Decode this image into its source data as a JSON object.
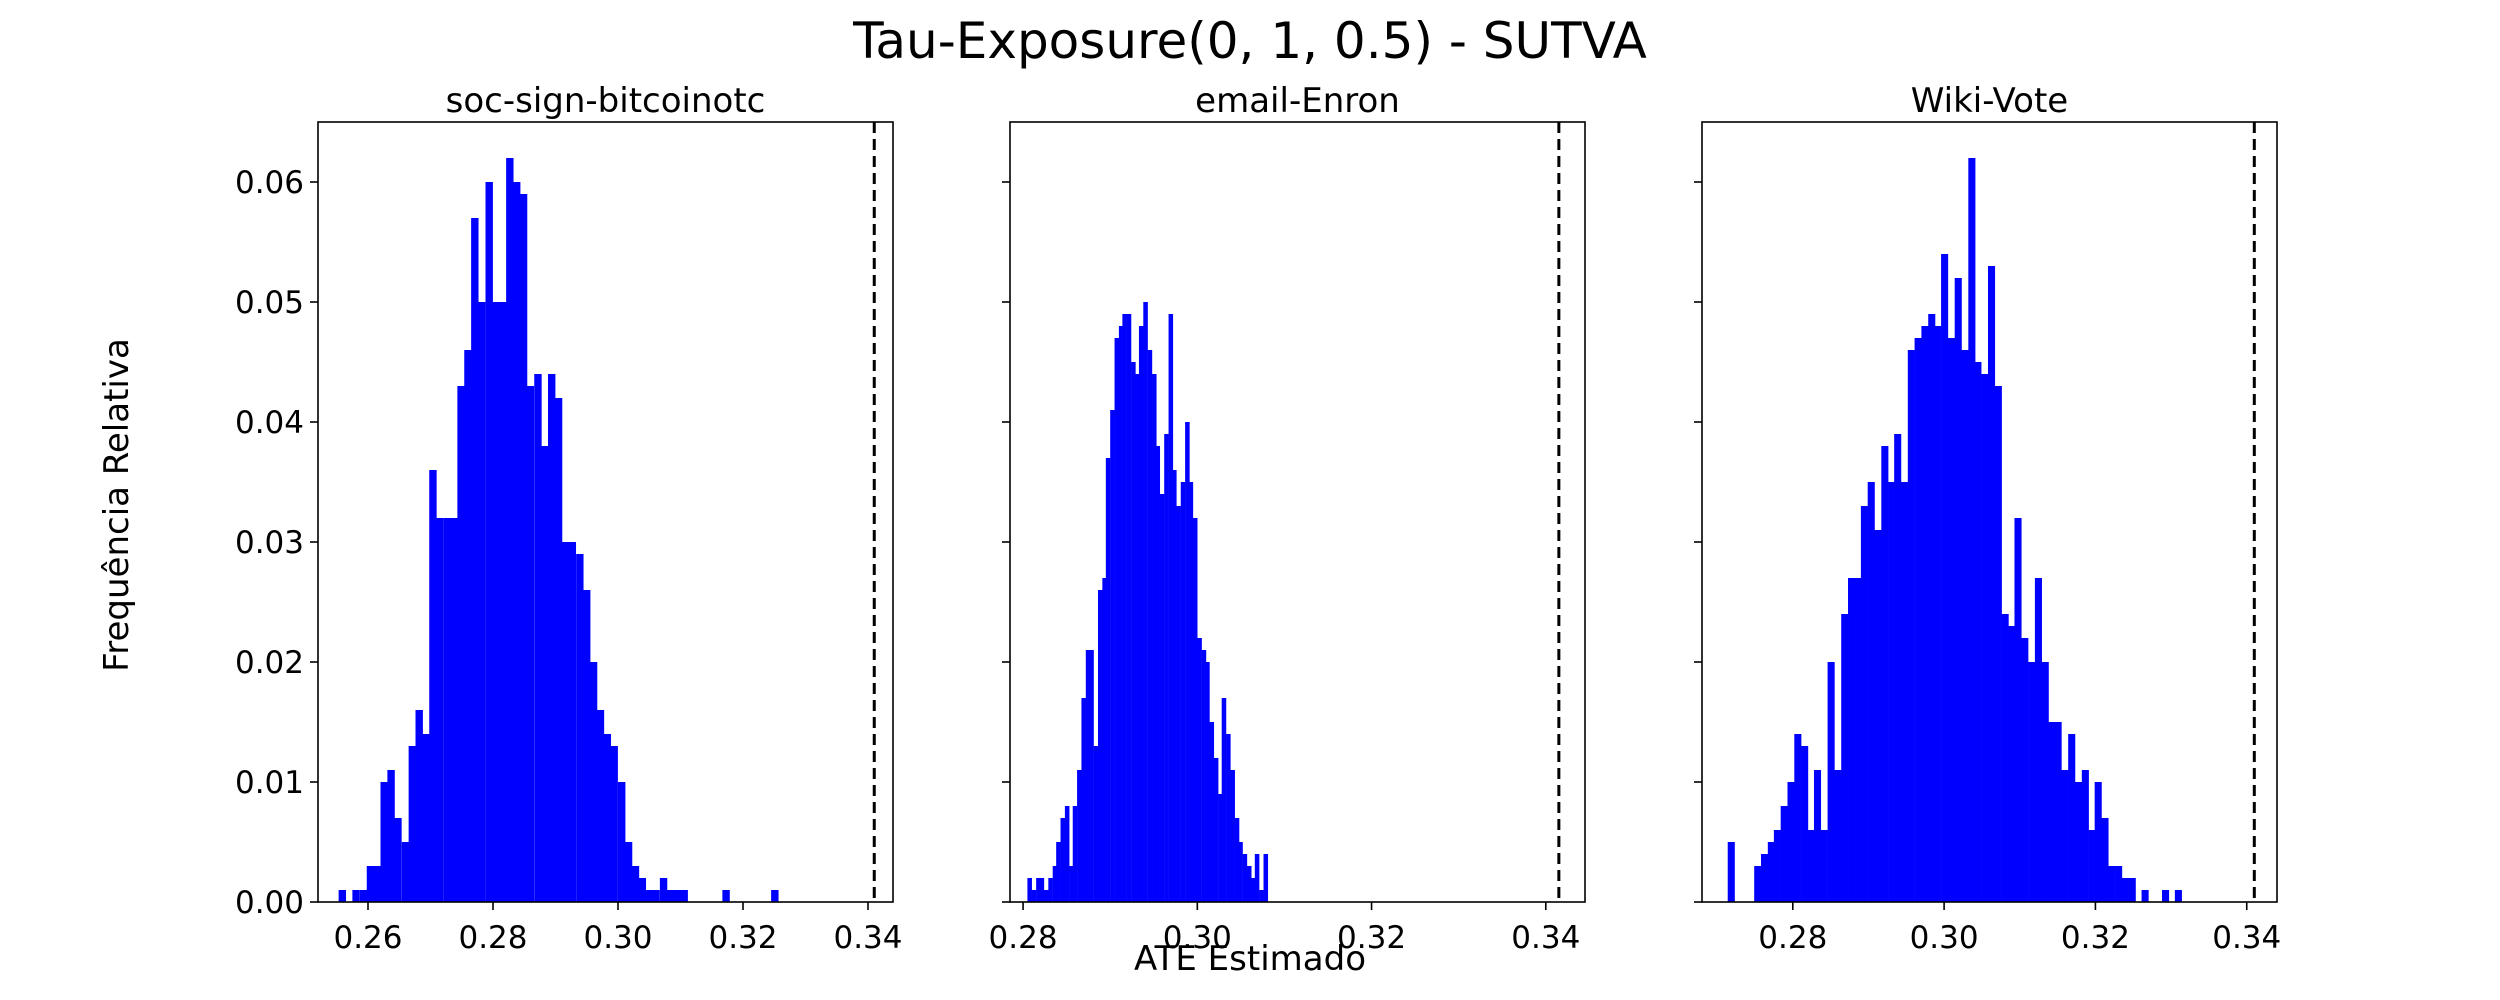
{
  "figure": {
    "title": "Tau-Exposure(0, 1, 0.5) - SUTVA",
    "xlabel": "ATE Estimado",
    "ylabel": "Frequência Relativa"
  },
  "chart_data": [
    {
      "type": "bar",
      "title": "soc-sign-bitcoinotc",
      "xlim": [
        0.252,
        0.344
      ],
      "ylim": [
        0,
        0.065
      ],
      "xticks": [
        0.26,
        0.28,
        0.3,
        0.32,
        0.34
      ],
      "xtick_labels": [
        "0.26",
        "0.28",
        "0.30",
        "0.32",
        "0.34"
      ],
      "yticks": [
        0.0,
        0.01,
        0.02,
        0.03,
        0.04,
        0.05,
        0.06
      ],
      "ytick_labels": [
        "0.00",
        "0.01",
        "0.02",
        "0.03",
        "0.04",
        "0.05",
        "0.06"
      ],
      "color": "#0000ff",
      "reference_line_x": 0.341,
      "bin_width": 0.00112,
      "bin_starts": [
        0.2553,
        0.2564,
        0.2575,
        0.2587,
        0.2598,
        0.2609,
        0.262,
        0.2631,
        0.2642,
        0.2654,
        0.2665,
        0.2676,
        0.2687,
        0.2698,
        0.2709,
        0.2721,
        0.2732,
        0.2743,
        0.2754,
        0.2765,
        0.2776,
        0.2788,
        0.2799,
        0.281,
        0.2821,
        0.2832,
        0.2843,
        0.2854,
        0.2866,
        0.2877,
        0.2888,
        0.2899,
        0.291,
        0.2921,
        0.2933,
        0.2944,
        0.2955,
        0.2966,
        0.2977,
        0.2988,
        0.3,
        0.3011,
        0.3022,
        0.3033,
        0.3044,
        0.3055,
        0.3067,
        0.3078,
        0.3089,
        0.31,
        0.3111,
        0.3122,
        0.3133,
        0.3145,
        0.3156,
        0.3167,
        0.3178,
        0.3189,
        0.32,
        0.3212,
        0.3223,
        0.3234,
        0.3245,
        0.3256,
        0.3267,
        0.3279,
        0.329,
        0.3301,
        0.3312,
        0.3323
      ],
      "values": [
        0.001,
        0,
        0.001,
        0.001,
        0.003,
        0.003,
        0.01,
        0.011,
        0.007,
        0.005,
        0.013,
        0.016,
        0.014,
        0.036,
        0.032,
        0.032,
        0.032,
        0.043,
        0.046,
        0.057,
        0.05,
        0.06,
        0.05,
        0.05,
        0.062,
        0.06,
        0.059,
        0.043,
        0.044,
        0.038,
        0.044,
        0.042,
        0.03,
        0.03,
        0.029,
        0.026,
        0.02,
        0.016,
        0.014,
        0.013,
        0.01,
        0.005,
        0.003,
        0.002,
        0.001,
        0.001,
        0.002,
        0.001,
        0.001,
        0.001,
        0,
        0,
        0,
        0,
        0,
        0.001,
        0,
        0,
        0,
        0,
        0,
        0,
        0.001,
        0,
        0,
        0,
        0,
        0,
        0,
        0
      ]
    },
    {
      "type": "bar",
      "title": "email-Enron",
      "xlim": [
        0.2785,
        0.3445
      ],
      "ylim": [
        0,
        0.065
      ],
      "xticks": [
        0.28,
        0.3,
        0.32,
        0.34
      ],
      "xtick_labels": [
        "0.28",
        "0.30",
        "0.32",
        "0.34"
      ],
      "yticks": [
        0.0,
        0.01,
        0.02,
        0.03,
        0.04,
        0.05,
        0.06
      ],
      "color": "#0000ff",
      "reference_line_x": 0.3415,
      "bin_width": 0.000475,
      "bin_starts": [
        0.2805,
        0.281,
        0.2815,
        0.2819,
        0.2824,
        0.2829,
        0.2834,
        0.2838,
        0.2843,
        0.2848,
        0.2853,
        0.2857,
        0.2862,
        0.2867,
        0.2872,
        0.2876,
        0.2881,
        0.2886,
        0.2891,
        0.2895,
        0.29,
        0.2905,
        0.291,
        0.2914,
        0.2919,
        0.2924,
        0.2929,
        0.2933,
        0.2938,
        0.2943,
        0.2948,
        0.2952,
        0.2957,
        0.2962,
        0.2967,
        0.2971,
        0.2976,
        0.2981,
        0.2986,
        0.299,
        0.2995,
        0.3,
        0.3005,
        0.3009,
        0.3014,
        0.3019,
        0.3024,
        0.3028,
        0.3033,
        0.3038,
        0.3043,
        0.3047,
        0.3052,
        0.3057,
        0.3062,
        0.3066,
        0.3071,
        0.3076
      ],
      "values": [
        0.002,
        0.001,
        0.002,
        0.002,
        0.001,
        0.002,
        0.003,
        0.005,
        0.007,
        0.008,
        0.003,
        0.008,
        0.011,
        0.017,
        0.021,
        0.021,
        0.013,
        0.026,
        0.027,
        0.037,
        0.041,
        0.047,
        0.048,
        0.049,
        0.049,
        0.045,
        0.044,
        0.048,
        0.05,
        0.046,
        0.044,
        0.038,
        0.034,
        0.039,
        0.049,
        0.036,
        0.033,
        0.035,
        0.04,
        0.035,
        0.032,
        0.022,
        0.021,
        0.02,
        0.015,
        0.012,
        0.009,
        0.017,
        0.014,
        0.011,
        0.007,
        0.005,
        0.004,
        0.003,
        0.002,
        0.004,
        0.001,
        0.004
      ]
    },
    {
      "type": "bar",
      "title": "Wiki-Vote",
      "xlim": [
        0.268,
        0.344
      ],
      "ylim": [
        0,
        0.065
      ],
      "xticks": [
        0.28,
        0.3,
        0.32,
        0.34
      ],
      "xtick_labels": [
        "0.28",
        "0.30",
        "0.32",
        "0.34"
      ],
      "yticks": [
        0.0,
        0.01,
        0.02,
        0.03,
        0.04,
        0.05,
        0.06
      ],
      "color": "#0000ff",
      "reference_line_x": 0.341,
      "bin_width": 0.000883,
      "bin_starts": [
        0.2714,
        0.2722,
        0.2731,
        0.274,
        0.2749,
        0.2758,
        0.2767,
        0.2775,
        0.2784,
        0.2793,
        0.2802,
        0.2811,
        0.282,
        0.2828,
        0.2837,
        0.2846,
        0.2855,
        0.2864,
        0.2873,
        0.2881,
        0.289,
        0.2899,
        0.2908,
        0.2917,
        0.2926,
        0.2934,
        0.2943,
        0.2952,
        0.2961,
        0.297,
        0.2979,
        0.2987,
        0.2996,
        0.3005,
        0.3014,
        0.3023,
        0.3032,
        0.304,
        0.3049,
        0.3058,
        0.3067,
        0.3076,
        0.3085,
        0.3093,
        0.3102,
        0.3111,
        0.312,
        0.3129,
        0.3138,
        0.3146,
        0.3155,
        0.3164,
        0.3173,
        0.3182,
        0.3191,
        0.3199,
        0.3208,
        0.3217,
        0.3226,
        0.3235,
        0.3244,
        0.3252,
        0.3261,
        0.327,
        0.3279,
        0.3288,
        0.3297,
        0.3305
      ],
      "values": [
        0.005,
        0,
        0,
        0,
        0.003,
        0.004,
        0.005,
        0.006,
        0.008,
        0.01,
        0.014,
        0.013,
        0.006,
        0.011,
        0.006,
        0.02,
        0.011,
        0.024,
        0.027,
        0.027,
        0.033,
        0.035,
        0.031,
        0.038,
        0.035,
        0.039,
        0.035,
        0.046,
        0.047,
        0.048,
        0.049,
        0.048,
        0.054,
        0.047,
        0.052,
        0.046,
        0.062,
        0.045,
        0.044,
        0.053,
        0.043,
        0.024,
        0.023,
        0.032,
        0.022,
        0.02,
        0.027,
        0.02,
        0.015,
        0.015,
        0.011,
        0.014,
        0.01,
        0.011,
        0.006,
        0.01,
        0.007,
        0.003,
        0.003,
        0.002,
        0.002,
        0,
        0.001,
        0,
        0,
        0.001,
        0,
        0.001
      ]
    }
  ]
}
